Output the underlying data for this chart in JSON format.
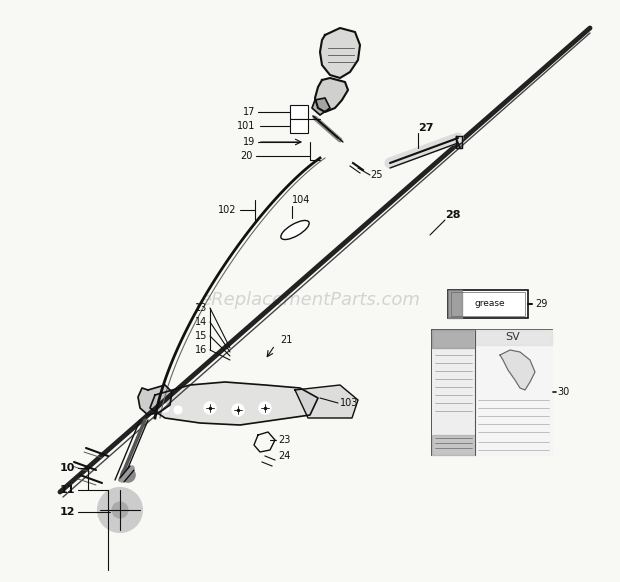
{
  "bg_color": "#ffffff",
  "watermark": "eReplacementParts.com",
  "watermark_color": "#bbbbbb",
  "watermark_alpha": 0.6,
  "line_color": "#111111",
  "text_color": "#111111",
  "figsize": [
    6.2,
    5.82
  ],
  "dpi": 100
}
